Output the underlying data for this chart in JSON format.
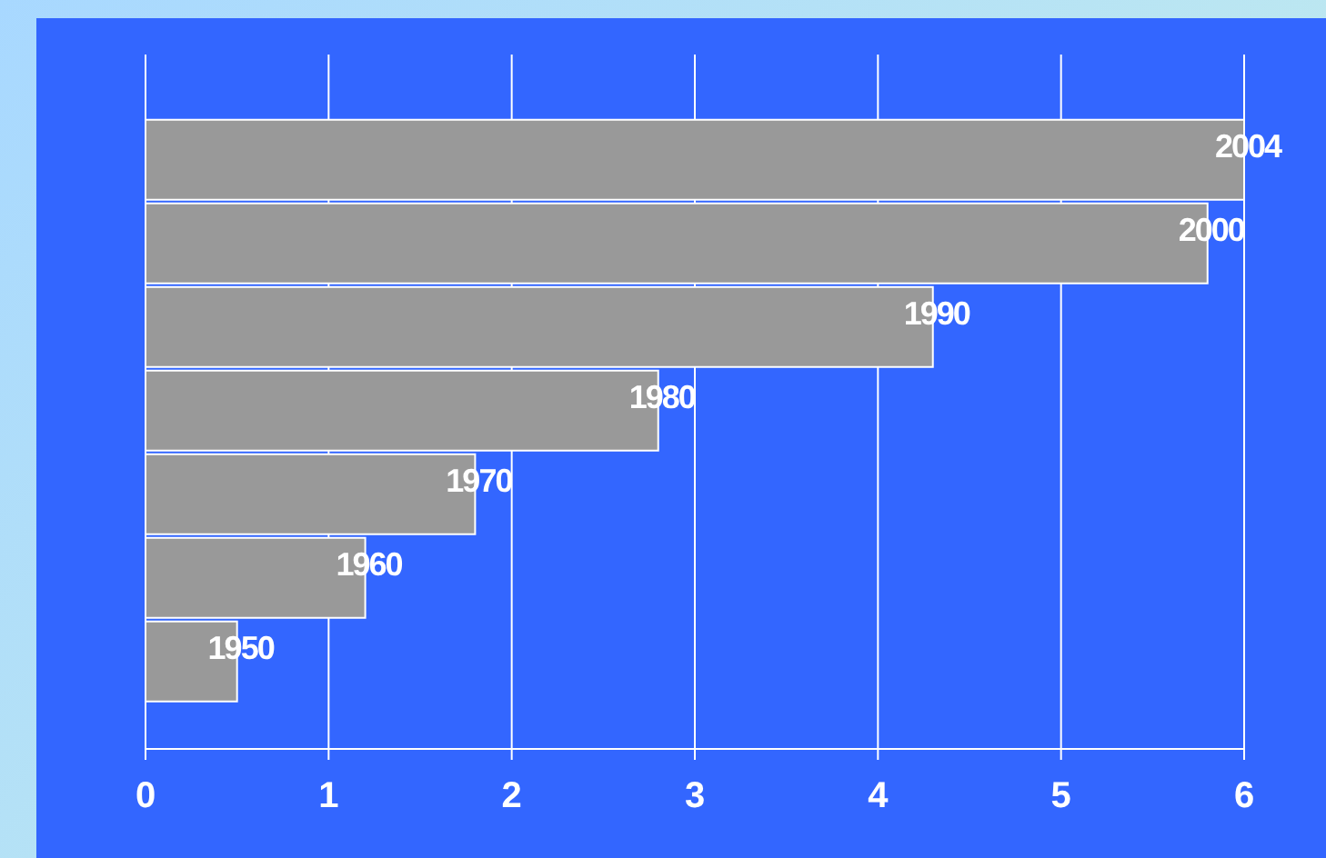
{
  "chart_data": {
    "type": "bar",
    "orientation": "horizontal",
    "categories": [
      "2004",
      "2000",
      "1990",
      "1980",
      "1970",
      "1960",
      "1950"
    ],
    "values": [
      6.0,
      5.8,
      4.3,
      2.8,
      1.8,
      1.2,
      0.5
    ],
    "color": "#999999",
    "xlim": [
      0,
      6
    ],
    "xticks": [
      0,
      1,
      2,
      3,
      4,
      5,
      6
    ],
    "grid": "x",
    "tick_labels": "x"
  }
}
